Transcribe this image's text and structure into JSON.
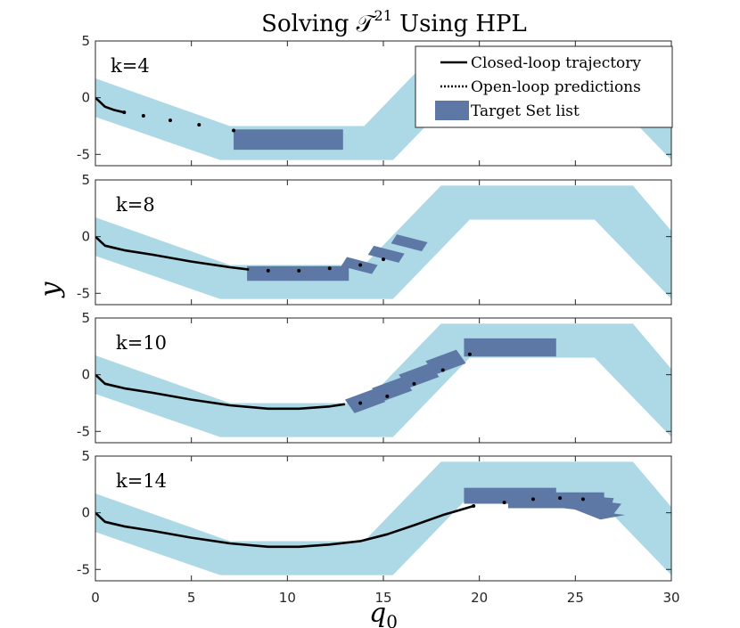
{
  "chart_data": {
    "type": "line",
    "title": "Solving 𝒯",
    "title_superscript": "21",
    "title_suffix": " Using HPL",
    "xlabel": "q",
    "xlabel_subscript": "0",
    "ylabel": "y",
    "xlim": [
      0,
      30
    ],
    "ylim": [
      -6,
      5
    ],
    "xticks": [
      0,
      5,
      10,
      15,
      20,
      25,
      30
    ],
    "yticks": [
      -5,
      0,
      5
    ],
    "colors": {
      "safe_region": "#add8e6",
      "target_set": "#5e78a6",
      "closed_loop": "#000000",
      "frame": "#262626"
    },
    "legend": {
      "position": "top-right",
      "entries": [
        "Closed-loop trajectory",
        "Open-loop predictions",
        "Target Set list"
      ]
    },
    "safe_region": {
      "upper": [
        [
          0,
          1.7
        ],
        [
          7,
          -2.5
        ],
        [
          14,
          -2.5
        ],
        [
          18,
          4.5
        ],
        [
          28,
          4.5
        ],
        [
          30,
          0.5
        ]
      ],
      "lower": [
        [
          0,
          -1.7
        ],
        [
          6.5,
          -5.5
        ],
        [
          15.5,
          -5.5
        ],
        [
          19.5,
          1.5
        ],
        [
          26,
          1.5
        ],
        [
          30,
          -5.5
        ]
      ]
    },
    "panels": [
      {
        "label": "k=4",
        "closed_loop": [
          [
            0,
            0
          ],
          [
            0.5,
            -0.8
          ],
          [
            1,
            -1.1
          ],
          [
            1.5,
            -1.3
          ]
        ],
        "predictions": [
          [
            1.5,
            -1.3
          ],
          [
            2.5,
            -1.6
          ],
          [
            3.9,
            -2.0
          ],
          [
            5.4,
            -2.4
          ],
          [
            7.2,
            -2.9
          ]
        ],
        "target_sets": [
          [
            [
              7.2,
              -2.8
            ],
            [
              12.9,
              -2.8
            ],
            [
              12.9,
              -4.6
            ],
            [
              7.2,
              -4.6
            ]
          ]
        ]
      },
      {
        "label": "k=8",
        "closed_loop": [
          [
            0,
            0
          ],
          [
            0.5,
            -0.8
          ],
          [
            1.5,
            -1.2
          ],
          [
            3,
            -1.6
          ],
          [
            5,
            -2.2
          ],
          [
            7,
            -2.7
          ],
          [
            8,
            -2.9
          ]
        ],
        "predictions": [
          [
            9,
            -3.0
          ],
          [
            10.6,
            -3.0
          ],
          [
            12.2,
            -2.8
          ],
          [
            13.8,
            -2.5
          ],
          [
            15,
            -2.0
          ]
        ],
        "target_sets": [
          [
            [
              7.9,
              -2.6
            ],
            [
              13.2,
              -2.6
            ],
            [
              13.2,
              -3.9
            ],
            [
              7.9,
              -3.9
            ]
          ],
          [
            [
              13.1,
              -1.8
            ],
            [
              14.7,
              -2.5
            ],
            [
              14.4,
              -3.3
            ],
            [
              12.8,
              -2.6
            ]
          ],
          [
            [
              14.5,
              -0.8
            ],
            [
              16.1,
              -1.5
            ],
            [
              15.8,
              -2.3
            ],
            [
              14.2,
              -1.6
            ]
          ],
          [
            [
              15.7,
              0.2
            ],
            [
              17.3,
              -0.5
            ],
            [
              17.0,
              -1.3
            ],
            [
              15.4,
              -0.6
            ]
          ]
        ]
      },
      {
        "label": "k=10",
        "closed_loop": [
          [
            0,
            0
          ],
          [
            0.5,
            -0.8
          ],
          [
            1.5,
            -1.2
          ],
          [
            3,
            -1.6
          ],
          [
            5,
            -2.2
          ],
          [
            7,
            -2.7
          ],
          [
            9,
            -3.0
          ],
          [
            10.6,
            -3.0
          ],
          [
            12.2,
            -2.8
          ],
          [
            13,
            -2.6
          ]
        ],
        "predictions": [
          [
            13.8,
            -2.5
          ],
          [
            15.2,
            -1.9
          ],
          [
            16.6,
            -0.8
          ],
          [
            18.1,
            0.4
          ],
          [
            19.5,
            1.8
          ]
        ],
        "target_sets": [
          [
            [
              19.2,
              3.2
            ],
            [
              24.0,
              3.2
            ],
            [
              24.0,
              1.6
            ],
            [
              19.2,
              1.6
            ]
          ],
          [
            [
              13.0,
              -2.2
            ],
            [
              14.6,
              -1.2
            ],
            [
              15.1,
              -2.4
            ],
            [
              13.5,
              -3.4
            ]
          ],
          [
            [
              14.4,
              -1.2
            ],
            [
              16.0,
              -0.2
            ],
            [
              16.5,
              -1.4
            ],
            [
              14.9,
              -2.4
            ]
          ],
          [
            [
              15.8,
              0.0
            ],
            [
              17.4,
              1.0
            ],
            [
              17.9,
              -0.2
            ],
            [
              16.3,
              -1.2
            ]
          ],
          [
            [
              17.2,
              1.2
            ],
            [
              18.8,
              2.2
            ],
            [
              19.3,
              1.0
            ],
            [
              17.7,
              0.0
            ]
          ]
        ]
      },
      {
        "label": "k=14",
        "closed_loop": [
          [
            0,
            0
          ],
          [
            0.5,
            -0.8
          ],
          [
            1.5,
            -1.2
          ],
          [
            3,
            -1.6
          ],
          [
            5,
            -2.2
          ],
          [
            7,
            -2.7
          ],
          [
            9,
            -3.0
          ],
          [
            10.6,
            -3.0
          ],
          [
            12.2,
            -2.8
          ],
          [
            13.8,
            -2.5
          ],
          [
            15.2,
            -1.9
          ],
          [
            16.6,
            -1.1
          ],
          [
            18.1,
            -0.2
          ],
          [
            19.7,
            0.6
          ]
        ],
        "predictions": [
          [
            19.7,
            0.6
          ],
          [
            21.3,
            0.9
          ],
          [
            22.8,
            1.2
          ],
          [
            24.2,
            1.3
          ],
          [
            25.4,
            1.2
          ]
        ],
        "target_sets": [
          [
            [
              19.2,
              2.2
            ],
            [
              24.0,
              2.2
            ],
            [
              24.0,
              0.8
            ],
            [
              19.2,
              0.8
            ]
          ],
          [
            [
              21.5,
              1.8
            ],
            [
              26.5,
              1.8
            ],
            [
              26.5,
              0.4
            ],
            [
              21.5,
              0.4
            ]
          ],
          [
            [
              24.0,
              1.6
            ],
            [
              27.0,
              1.3
            ],
            [
              26.8,
              0.2
            ],
            [
              23.8,
              0.5
            ]
          ],
          [
            [
              24.5,
              1.4
            ],
            [
              27.4,
              0.8
            ],
            [
              27.0,
              -0.1
            ],
            [
              24.4,
              0.4
            ]
          ],
          [
            [
              24.8,
              0.4
            ],
            [
              27.6,
              -0.2
            ],
            [
              26.3,
              -0.6
            ]
          ]
        ]
      }
    ]
  }
}
